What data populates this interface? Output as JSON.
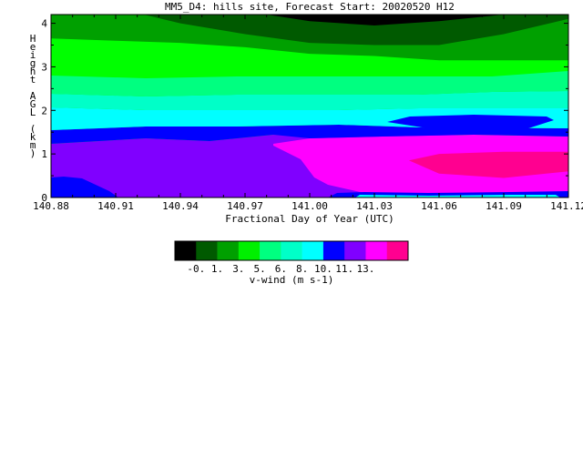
{
  "chart_data": {
    "type": "heatmap",
    "title": "MM5_D4: hills site,  Forecast Start: 20020520 H12",
    "xlabel": "Fractional Day of Year (UTC)",
    "ylabel": "Height AGL (km)",
    "x_ticks": [
      "140.88",
      "140.91",
      "140.94",
      "140.97",
      "141.00",
      "141.03",
      "141.06",
      "141.09",
      "141.12"
    ],
    "y_ticks": [
      "0",
      "1",
      "2",
      "3",
      "4"
    ],
    "xlim": [
      140.88,
      141.12
    ],
    "ylim": [
      0,
      4.2
    ],
    "colorbar": {
      "label": "v-wind (m s-1)",
      "tick_labels": [
        "-0.",
        "1.",
        "3.",
        "5.",
        "6.",
        "8.",
        "10.",
        "11.",
        "13."
      ],
      "colors": [
        "#000000",
        "#005a00",
        "#00a000",
        "#00f000",
        "#00ff80",
        "#00ffc8",
        "#00ffff",
        "#0000ff",
        "#8000ff",
        "#ff00ff",
        "#ff0090"
      ]
    },
    "bands": [
      {
        "color": "#ff0090",
        "points": [
          [
            141.046,
            0.85
          ],
          [
            141.06,
            0.55
          ],
          [
            141.09,
            0.45
          ],
          [
            141.12,
            0.6
          ],
          [
            141.12,
            1.05
          ],
          [
            141.09,
            1.05
          ],
          [
            141.06,
            1.0
          ]
        ]
      },
      {
        "color": "#00a000",
        "points": [
          [
            140.88,
            4.2
          ],
          [
            141.12,
            4.2
          ],
          [
            141.12,
            3.15
          ],
          [
            141.09,
            3.15
          ],
          [
            141.06,
            3.15
          ],
          [
            141.03,
            3.25
          ],
          [
            141.0,
            3.3
          ],
          [
            140.97,
            3.45
          ],
          [
            140.94,
            3.55
          ],
          [
            140.91,
            3.6
          ],
          [
            140.88,
            3.65
          ]
        ]
      },
      {
        "color": "#005a00",
        "points": [
          [
            140.923,
            4.2
          ],
          [
            141.12,
            4.2
          ],
          [
            141.12,
            4.1
          ],
          [
            141.09,
            3.75
          ],
          [
            141.06,
            3.5
          ],
          [
            141.03,
            3.5
          ],
          [
            141.0,
            3.55
          ],
          [
            140.97,
            3.75
          ],
          [
            140.94,
            4.0
          ]
        ]
      },
      {
        "color": "#000000",
        "points": [
          [
            140.98,
            4.2
          ],
          [
            141.09,
            4.2
          ],
          [
            141.06,
            4.05
          ],
          [
            141.03,
            3.95
          ],
          [
            141.0,
            4.05
          ]
        ]
      }
    ]
  }
}
